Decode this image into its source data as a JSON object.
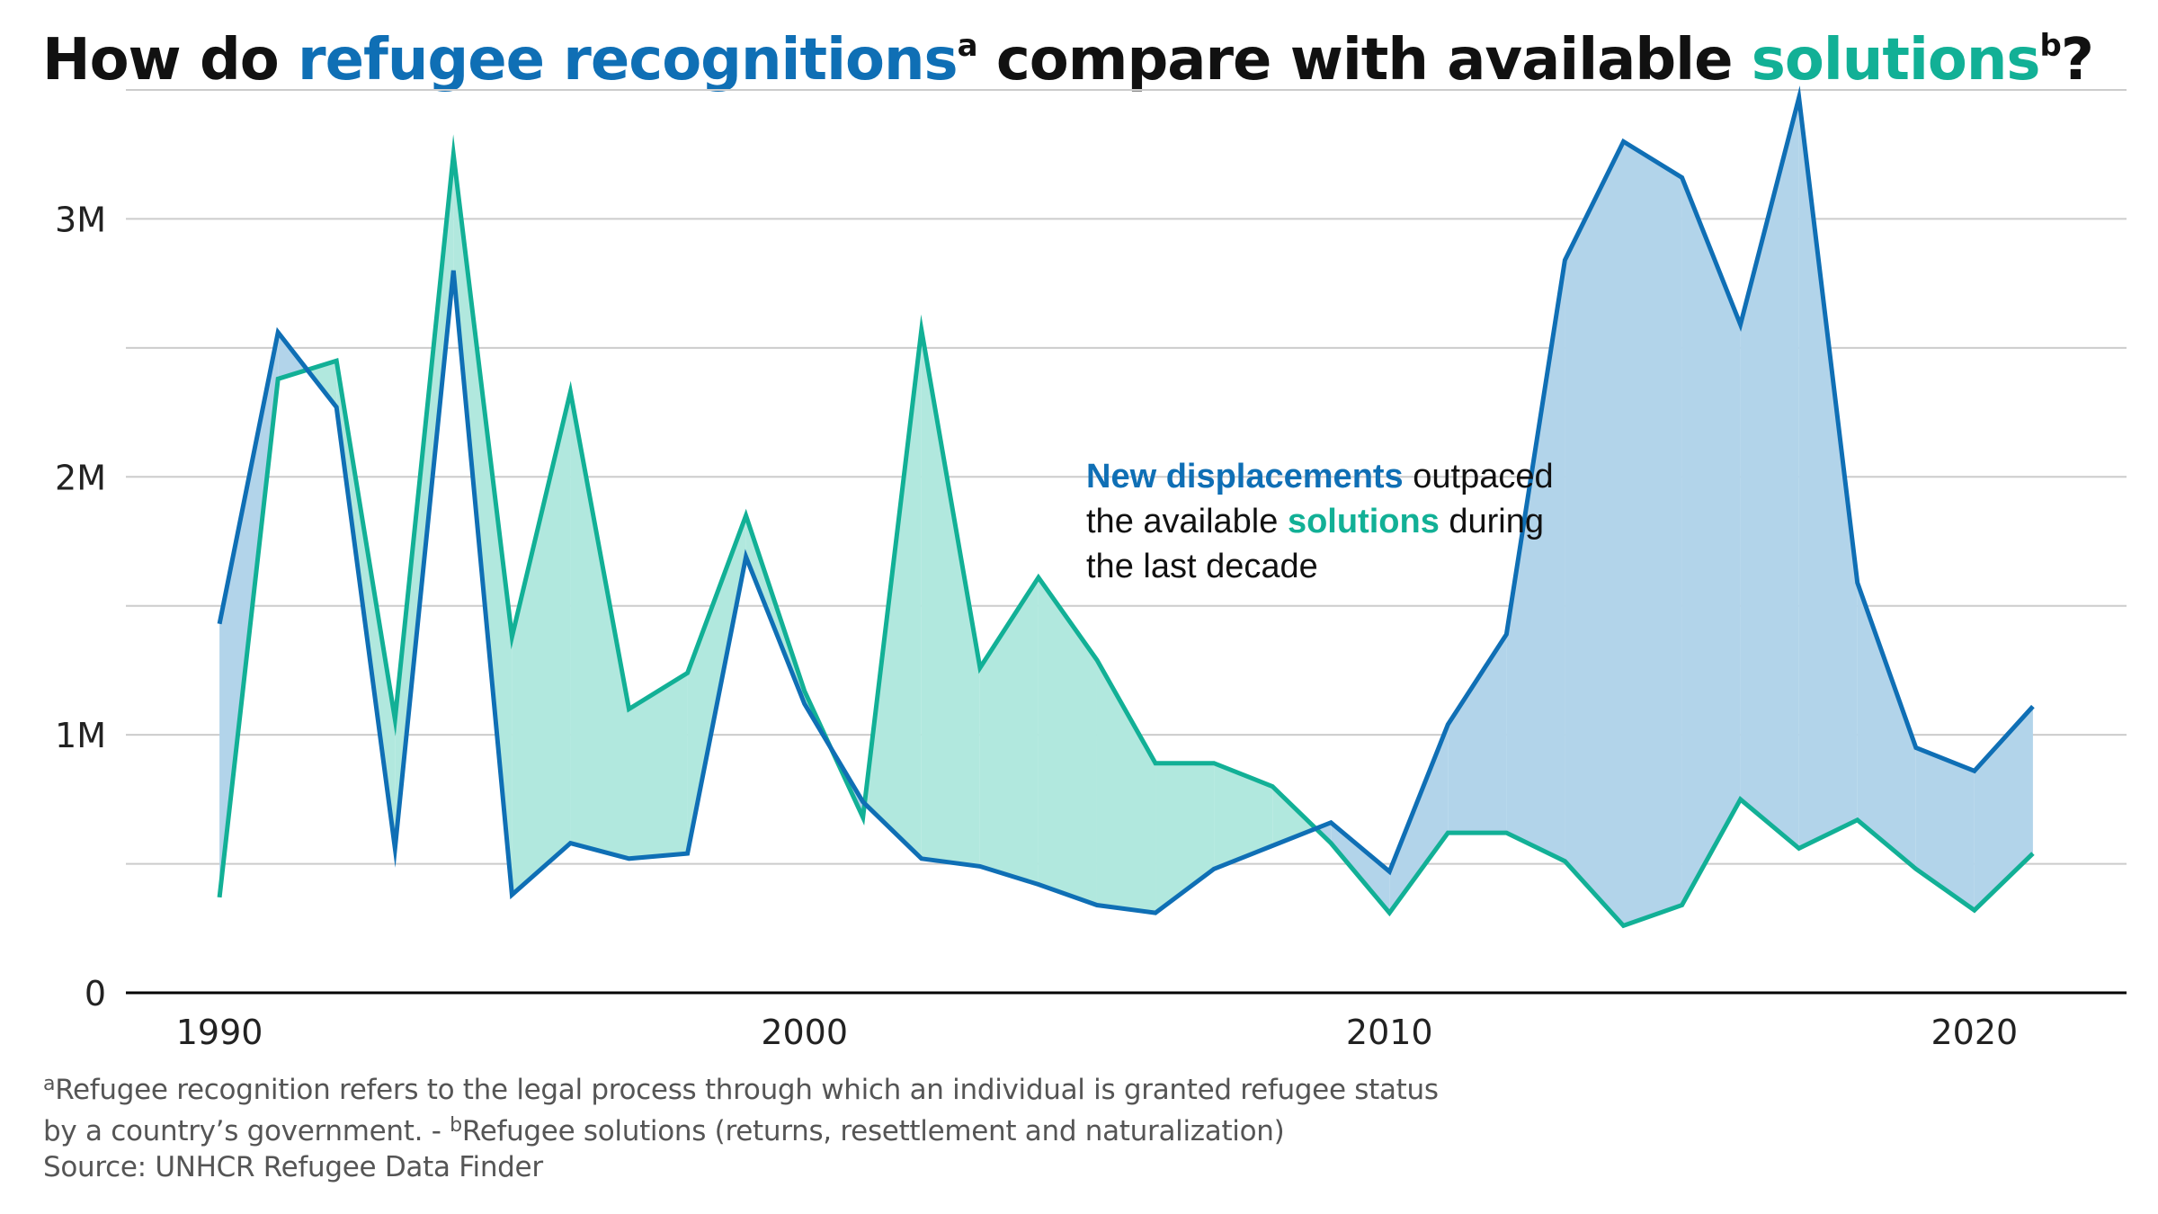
{
  "title": {
    "prefix": "How do ",
    "highlight_1": "refugee recognitions",
    "marker_1": "a",
    "middle": " compare with available ",
    "highlight_2": "solutions",
    "marker_2": "b",
    "suffix": "?"
  },
  "annotation": {
    "highlight_1": "New displacements",
    "text_1": " outpaced the available ",
    "highlight_2": "solutions",
    "text_2": " during the last decade"
  },
  "footnotes": {
    "marker_a": "a",
    "note_a_1": "Refugee recognition refers to the legal process through which an individual is granted refugee status",
    "note_a_2": "by a country’s government. - ",
    "marker_b": "b",
    "note_b": "Refugee solutions (returns, resettlement and naturalization)",
    "source": "Source: UNHCR Refugee Data Finder"
  },
  "colors": {
    "recognitions": "#0f6fb5",
    "recognitions_fill": "#b2d4ea",
    "solutions": "#12b096",
    "solutions_fill": "#b1e8de",
    "grid": "#cccccc",
    "axis": "#000000",
    "tick_text": "#222222"
  },
  "chart_data": {
    "type": "line",
    "title": "How do refugee recognitions compare with available solutions?",
    "xlabel": "",
    "ylabel": "",
    "xlim": [
      1988.4,
      2022.6
    ],
    "ylim": [
      0,
      3500000
    ],
    "grid": true,
    "legend": "none",
    "area_between_series": true,
    "x_ticks": [
      1990,
      2000,
      2010,
      2020
    ],
    "y_ticks": [
      0,
      1000000,
      2000000,
      3000000
    ],
    "y_tick_labels": [
      "0",
      "1M",
      "2M",
      "3M"
    ],
    "x": [
      1990,
      1991,
      1992,
      1993,
      1994,
      1995,
      1996,
      1997,
      1998,
      1999,
      2000,
      2001,
      2002,
      2003,
      2004,
      2005,
      2006,
      2007,
      2008,
      2009,
      2010,
      2011,
      2012,
      2013,
      2014,
      2015,
      2016,
      2017,
      2018,
      2019,
      2020,
      2021
    ],
    "series": [
      {
        "key": "recognitions",
        "values": [
          1430000,
          2560000,
          2270000,
          560000,
          2800000,
          380000,
          580000,
          520000,
          540000,
          1690000,
          1120000,
          740000,
          520000,
          490000,
          420000,
          340000,
          310000,
          480000,
          570000,
          660000,
          470000,
          1040000,
          1390000,
          2840000,
          3300000,
          3160000,
          2590000,
          3470000,
          1590000,
          950000,
          860000,
          1110000
        ]
      },
      {
        "key": "solutions",
        "values": [
          370000,
          2380000,
          2450000,
          1060000,
          3250000,
          1380000,
          2330000,
          1100000,
          1240000,
          1850000,
          1170000,
          680000,
          2570000,
          1260000,
          1610000,
          1290000,
          890000,
          890000,
          800000,
          580000,
          310000,
          620000,
          620000,
          510000,
          260000,
          340000,
          750000,
          560000,
          670000,
          480000,
          320000,
          540000
        ]
      }
    ]
  }
}
